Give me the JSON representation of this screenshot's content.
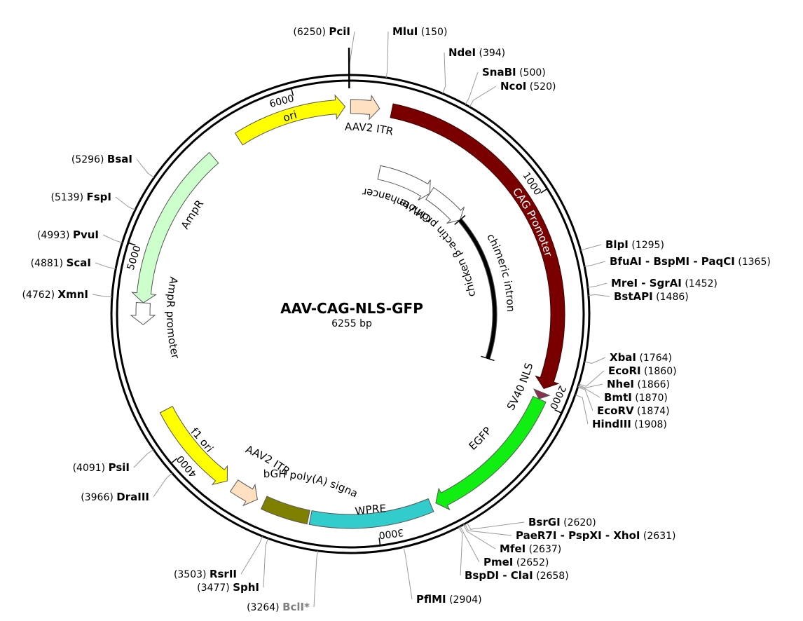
{
  "plasmid": {
    "name": "AAV-CAG-NLS-GFP",
    "length_label": "6255 bp",
    "length": 6255
  },
  "ticks": [
    {
      "bp": 1000,
      "label": "1000"
    },
    {
      "bp": 2000,
      "label": "2000"
    },
    {
      "bp": 3000,
      "label": "3000"
    },
    {
      "bp": 4000,
      "label": "4000"
    },
    {
      "bp": 5000,
      "label": "5000"
    },
    {
      "bp": 6000,
      "label": "6000"
    }
  ],
  "features": [
    {
      "id": "aav2-itr-1",
      "label": "AAV2 ITR",
      "start": 1,
      "end": 141,
      "color": "#ffe0c0",
      "track": "outer",
      "strand": "+"
    },
    {
      "id": "cag-promoter",
      "label": "CAG Promoter",
      "start": 200,
      "end": 1930,
      "color": "#7a0000",
      "track": "outer",
      "strand": "+"
    },
    {
      "id": "cmv-enhancer",
      "label": "CMV enhancer",
      "start": 200,
      "end": 580,
      "color": "#ffffff",
      "track": "inner",
      "strand": "+"
    },
    {
      "id": "chicken-beta-actin",
      "label": "chicken β-actin promoter",
      "start": 580,
      "end": 858,
      "color": "#ffffff",
      "track": "inner",
      "strand": "+"
    },
    {
      "id": "chimeric-intron",
      "label": "chimeric intron",
      "start": 858,
      "end": 1875,
      "color": "#000000",
      "track": "inner",
      "strand": "+"
    },
    {
      "id": "sv40-nls",
      "label": "SV40 NLS",
      "start": 1950,
      "end": 1985,
      "color": "#8a3050",
      "track": "outer",
      "strand": "+"
    },
    {
      "id": "egfp",
      "label": "EGFP",
      "start": 1985,
      "end": 2705,
      "color": "#11ee11",
      "track": "outer",
      "strand": "+"
    },
    {
      "id": "wpre",
      "label": "WPRE",
      "start": 2730,
      "end": 3320,
      "color": "#33cccc",
      "track": "outer",
      "strand": "none"
    },
    {
      "id": "bgh-polya",
      "label": "bGH poly(A) signal",
      "start": 3330,
      "end": 3555,
      "color": "#808000",
      "track": "outer",
      "strand": "none"
    },
    {
      "id": "aav2-itr-2",
      "label": "AAV2 ITR",
      "start": 3590,
      "end": 3720,
      "color": "#ffe0c0",
      "track": "outer",
      "strand": "-"
    },
    {
      "id": "f1-ori",
      "label": "f1 ori",
      "start": 3760,
      "end": 4215,
      "color": "#ffff00",
      "track": "outer",
      "strand": "-"
    },
    {
      "id": "ampr-promoter",
      "label": "AmpR promoter",
      "start": 4640,
      "end": 4745,
      "color": "#ffffff",
      "track": "outer",
      "strand": "-"
    },
    {
      "id": "ampr",
      "label": "AmpR",
      "start": 4745,
      "end": 5540,
      "color": "#ccffcc",
      "track": "outer",
      "strand": "-"
    },
    {
      "id": "ori",
      "label": "ori",
      "start": 5690,
      "end": 6230,
      "color": "#ffff00",
      "track": "outer",
      "strand": "+"
    }
  ],
  "sites": [
    {
      "name": "PciI",
      "pos": "(6250)",
      "bp": 6250,
      "color": "#000000",
      "align": "right"
    },
    {
      "name": "MluI",
      "pos": "(150)",
      "bp": 150,
      "color": "#000000",
      "align": "left"
    },
    {
      "name": "NdeI",
      "pos": "(394)",
      "bp": 394,
      "color": "#000000",
      "align": "left"
    },
    {
      "name": "SnaBI",
      "pos": "(500)",
      "bp": 500,
      "color": "#000000",
      "align": "left"
    },
    {
      "name": "NcoI",
      "pos": "(520)",
      "bp": 520,
      "color": "#000000",
      "align": "left"
    },
    {
      "name": "BlpI",
      "pos": "(1295)",
      "bp": 1295,
      "color": "#000000",
      "align": "left"
    },
    {
      "name": "BfuAI - BspMI - PaqCI",
      "pos": "(1365)",
      "bp": 1365,
      "color": "#000000",
      "align": "left"
    },
    {
      "name": "MreI - SgrAI",
      "pos": "(1452)",
      "bp": 1452,
      "color": "#000000",
      "align": "left"
    },
    {
      "name": "BstAPI",
      "pos": "(1486)",
      "bp": 1486,
      "color": "#000000",
      "align": "left"
    },
    {
      "name": "XbaI",
      "pos": "(1764)",
      "bp": 1764,
      "color": "#000000",
      "align": "left"
    },
    {
      "name": "EcoRI",
      "pos": "(1860)",
      "bp": 1860,
      "color": "#000000",
      "align": "left"
    },
    {
      "name": "NheI",
      "pos": "(1866)",
      "bp": 1866,
      "color": "#000000",
      "align": "left"
    },
    {
      "name": "BmtI",
      "pos": "(1870)",
      "bp": 1870,
      "color": "#000000",
      "align": "left"
    },
    {
      "name": "EcoRV",
      "pos": "(1874)",
      "bp": 1874,
      "color": "#000000",
      "align": "left"
    },
    {
      "name": "HindIII",
      "pos": "(1908)",
      "bp": 1908,
      "color": "#000000",
      "align": "left"
    },
    {
      "name": "BsrGI",
      "pos": "(2620)",
      "bp": 2620,
      "color": "#000000",
      "align": "left"
    },
    {
      "name": "PaeR7I - PspXI - XhoI",
      "pos": "(2631)",
      "bp": 2631,
      "color": "#000000",
      "align": "left"
    },
    {
      "name": "MfeI",
      "pos": "(2637)",
      "bp": 2637,
      "color": "#000000",
      "align": "left"
    },
    {
      "name": "PmeI",
      "pos": "(2652)",
      "bp": 2652,
      "color": "#000000",
      "align": "left"
    },
    {
      "name": "BspDI - ClaI",
      "pos": "(2658)",
      "bp": 2658,
      "color": "#000000",
      "align": "left"
    },
    {
      "name": "PflMI",
      "pos": "(2904)",
      "bp": 2904,
      "color": "#000000",
      "align": "left"
    },
    {
      "name": "BclI*",
      "pos": "(3264)",
      "bp": 3264,
      "color": "#808080",
      "align": "right"
    },
    {
      "name": "SphI",
      "pos": "(3477)",
      "bp": 3477,
      "color": "#000000",
      "align": "right"
    },
    {
      "name": "RsrII",
      "pos": "(3503)",
      "bp": 3503,
      "color": "#000000",
      "align": "right"
    },
    {
      "name": "DraIII",
      "pos": "(3966)",
      "bp": 3966,
      "color": "#000000",
      "align": "right"
    },
    {
      "name": "PsiI",
      "pos": "(4091)",
      "bp": 4091,
      "color": "#000000",
      "align": "right"
    },
    {
      "name": "XmnI",
      "pos": "(4762)",
      "bp": 4762,
      "color": "#000000",
      "align": "right"
    },
    {
      "name": "ScaI",
      "pos": "(4881)",
      "bp": 4881,
      "color": "#000000",
      "align": "right"
    },
    {
      "name": "PvuI",
      "pos": "(4993)",
      "bp": 4993,
      "color": "#000000",
      "align": "right"
    },
    {
      "name": "FspI",
      "pos": "(5139)",
      "bp": 5139,
      "color": "#000000",
      "align": "right"
    },
    {
      "name": "BsaI",
      "pos": "(5296)",
      "bp": 5296,
      "color": "#000000",
      "align": "right"
    }
  ]
}
